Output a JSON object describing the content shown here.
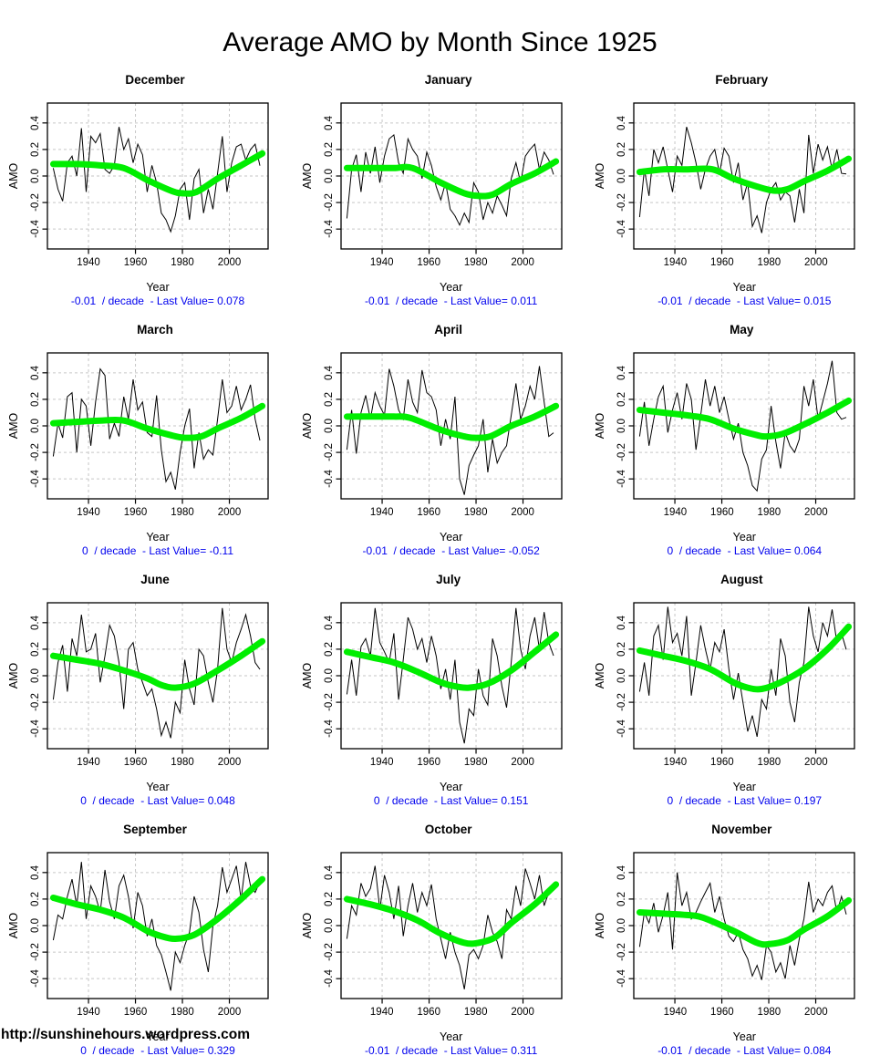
{
  "page": {
    "title": "Average AMO by Month Since 1925",
    "site_url": "http://sunshinehours.wordpress.com"
  },
  "colors": {
    "series_line": "#000000",
    "smooth_line": "#00EE00",
    "caption_text": "#0000EE",
    "grid_line": "#C6C6C6",
    "box_border": "#000000"
  },
  "axes": {
    "x_label": "Year",
    "y_label": "AMO",
    "x_ticks": [
      1940,
      1960,
      1980,
      2000
    ],
    "y_ticks": [
      -0.4,
      -0.2,
      0.0,
      0.2,
      0.4
    ],
    "x_range": [
      1922.5,
      2016.5
    ],
    "y_range": [
      -0.55,
      0.55
    ],
    "grid": "dashed"
  },
  "chart_data": [
    {
      "type": "line",
      "title": "December",
      "xlabel": "Year",
      "ylabel": "AMO",
      "trend_per_decade": "-0.01",
      "last_value": 0.078,
      "caption": "-0.01  / decade  - Last Value= 0.078",
      "x_start": 1925,
      "x_step": 2,
      "values": [
        0.06,
        -0.1,
        -0.19,
        0.1,
        0.15,
        0.0,
        0.36,
        -0.12,
        0.3,
        0.25,
        0.32,
        0.05,
        0.02,
        0.08,
        0.37,
        0.2,
        0.28,
        0.1,
        0.24,
        0.16,
        -0.12,
        0.08,
        -0.05,
        -0.28,
        -0.33,
        -0.42,
        -0.3,
        -0.1,
        -0.05,
        -0.33,
        -0.02,
        0.05,
        -0.28,
        -0.1,
        -0.25,
        0.02,
        0.3,
        -0.12,
        0.1,
        0.22,
        0.24,
        0.12,
        0.2,
        0.24,
        0.078
      ],
      "smooth": {
        "years": [
          1925,
          1935,
          1945,
          1955,
          1965,
          1975,
          1980,
          1986,
          1995,
          2005,
          2014
        ],
        "values": [
          0.09,
          0.09,
          0.08,
          0.06,
          -0.03,
          -0.11,
          -0.13,
          -0.12,
          -0.02,
          0.08,
          0.17
        ]
      }
    },
    {
      "type": "line",
      "title": "January",
      "xlabel": "Year",
      "ylabel": "AMO",
      "trend_per_decade": "-0.01",
      "last_value": 0.011,
      "caption": "-0.01  / decade  - Last Value= 0.011",
      "x_start": 1925,
      "x_step": 2,
      "values": [
        -0.32,
        0.05,
        0.16,
        -0.12,
        0.18,
        0.02,
        0.22,
        -0.05,
        0.15,
        0.28,
        0.31,
        0.1,
        0.02,
        0.28,
        0.2,
        0.15,
        -0.02,
        0.18,
        0.08,
        -0.08,
        -0.18,
        -0.05,
        -0.25,
        -0.3,
        -0.37,
        -0.28,
        -0.35,
        -0.05,
        -0.12,
        -0.33,
        -0.2,
        -0.28,
        -0.15,
        -0.22,
        -0.3,
        -0.02,
        0.1,
        -0.05,
        0.15,
        0.2,
        0.24,
        0.05,
        0.18,
        0.12,
        0.011
      ],
      "smooth": {
        "years": [
          1925,
          1935,
          1945,
          1953,
          1965,
          1975,
          1981,
          1987,
          1995,
          2005,
          2014
        ],
        "values": [
          0.06,
          0.06,
          0.06,
          0.06,
          -0.05,
          -0.13,
          -0.15,
          -0.14,
          -0.06,
          0.02,
          0.11
        ]
      }
    },
    {
      "type": "line",
      "title": "February",
      "xlabel": "Year",
      "ylabel": "AMO",
      "trend_per_decade": "-0.01",
      "last_value": 0.015,
      "caption": "-0.01  / decade  - Last Value= 0.015",
      "x_start": 1925,
      "x_step": 2,
      "values": [
        -0.31,
        0.05,
        -0.15,
        0.2,
        0.1,
        0.22,
        0.05,
        -0.12,
        0.15,
        0.08,
        0.37,
        0.25,
        0.1,
        -0.1,
        0.05,
        0.15,
        0.2,
        0.02,
        0.21,
        0.15,
        -0.05,
        0.1,
        -0.18,
        -0.05,
        -0.38,
        -0.3,
        -0.43,
        -0.2,
        -0.1,
        -0.05,
        -0.18,
        -0.12,
        -0.15,
        -0.35,
        -0.1,
        -0.28,
        0.31,
        0.02,
        0.24,
        0.12,
        0.22,
        0.05,
        0.2,
        0.02,
        0.015
      ],
      "smooth": {
        "years": [
          1925,
          1935,
          1945,
          1956,
          1965,
          1975,
          1982,
          1988,
          1995,
          2005,
          2014
        ],
        "values": [
          0.03,
          0.05,
          0.05,
          0.05,
          -0.02,
          -0.08,
          -0.11,
          -0.1,
          -0.04,
          0.04,
          0.13
        ]
      }
    },
    {
      "type": "line",
      "title": "March",
      "xlabel": "Year",
      "ylabel": "AMO",
      "trend_per_decade": "0",
      "last_value": -0.11,
      "caption": "0  / decade  - Last Value= -0.11",
      "x_start": 1925,
      "x_step": 2,
      "values": [
        -0.23,
        0.02,
        -0.09,
        0.22,
        0.25,
        -0.2,
        0.2,
        0.15,
        -0.15,
        0.18,
        0.43,
        0.38,
        -0.1,
        0.02,
        -0.08,
        0.22,
        0.05,
        0.35,
        0.12,
        0.18,
        -0.05,
        -0.08,
        0.23,
        -0.18,
        -0.42,
        -0.35,
        -0.48,
        -0.2,
        0.0,
        0.13,
        -0.32,
        -0.05,
        -0.25,
        -0.18,
        -0.22,
        0.05,
        0.35,
        0.1,
        0.15,
        0.3,
        0.12,
        0.2,
        0.31,
        0.05,
        -0.11
      ],
      "smooth": {
        "years": [
          1925,
          1935,
          1945,
          1955,
          1965,
          1975,
          1981,
          1988,
          1995,
          2005,
          2014
        ],
        "values": [
          0.02,
          0.03,
          0.04,
          0.04,
          -0.02,
          -0.07,
          -0.09,
          -0.08,
          -0.02,
          0.06,
          0.15
        ]
      }
    },
    {
      "type": "line",
      "title": "April",
      "xlabel": "Year",
      "ylabel": "AMO",
      "trend_per_decade": "-0.01",
      "last_value": -0.052,
      "caption": "-0.01  / decade  - Last Value= -0.052",
      "x_start": 1925,
      "x_step": 2,
      "values": [
        -0.18,
        0.12,
        -0.21,
        0.1,
        0.23,
        0.05,
        0.25,
        0.15,
        0.08,
        0.43,
        0.3,
        0.12,
        0.05,
        0.35,
        0.18,
        0.1,
        0.42,
        0.25,
        0.22,
        0.12,
        -0.15,
        0.05,
        -0.1,
        0.22,
        -0.4,
        -0.52,
        -0.3,
        -0.22,
        -0.15,
        0.05,
        -0.35,
        -0.1,
        -0.28,
        -0.2,
        -0.15,
        0.08,
        0.32,
        0.05,
        0.15,
        0.3,
        0.2,
        0.45,
        0.18,
        -0.08,
        -0.052
      ],
      "smooth": {
        "years": [
          1925,
          1935,
          1945,
          1952,
          1965,
          1975,
          1980,
          1986,
          1995,
          2005,
          2014
        ],
        "values": [
          0.07,
          0.07,
          0.07,
          0.06,
          -0.03,
          -0.08,
          -0.09,
          -0.08,
          0.0,
          0.07,
          0.15
        ]
      }
    },
    {
      "type": "line",
      "title": "May",
      "xlabel": "Year",
      "ylabel": "AMO",
      "trend_per_decade": "0",
      "last_value": 0.064,
      "caption": "0  / decade  - Last Value= 0.064",
      "x_start": 1925,
      "x_step": 2,
      "values": [
        -0.08,
        0.18,
        -0.15,
        0.05,
        0.22,
        0.3,
        -0.05,
        0.12,
        0.25,
        0.05,
        0.32,
        0.2,
        -0.18,
        0.08,
        0.35,
        0.15,
        0.3,
        0.1,
        0.22,
        0.05,
        -0.1,
        0.02,
        -0.2,
        -0.3,
        -0.45,
        -0.49,
        -0.25,
        -0.18,
        0.15,
        -0.12,
        -0.32,
        -0.05,
        -0.15,
        -0.2,
        -0.1,
        0.3,
        0.15,
        0.35,
        0.05,
        0.18,
        0.32,
        0.49,
        0.1,
        0.05,
        0.064
      ],
      "smooth": {
        "years": [
          1925,
          1935,
          1945,
          1955,
          1965,
          1975,
          1979,
          1986,
          1995,
          2005,
          2014
        ],
        "values": [
          0.12,
          0.1,
          0.08,
          0.05,
          -0.02,
          -0.07,
          -0.08,
          -0.06,
          0.01,
          0.1,
          0.19
        ]
      }
    },
    {
      "type": "line",
      "title": "June",
      "xlabel": "Year",
      "ylabel": "AMO",
      "trend_per_decade": "0",
      "last_value": 0.048,
      "caption": "0  / decade  - Last Value= 0.048",
      "x_start": 1925,
      "x_step": 2,
      "values": [
        -0.18,
        0.1,
        0.23,
        -0.12,
        0.28,
        0.15,
        0.46,
        0.18,
        0.2,
        0.32,
        -0.05,
        0.15,
        0.38,
        0.3,
        0.1,
        -0.25,
        0.2,
        0.25,
        0.05,
        -0.05,
        -0.15,
        -0.1,
        -0.25,
        -0.45,
        -0.35,
        -0.47,
        -0.2,
        -0.28,
        0.12,
        -0.1,
        -0.22,
        0.2,
        0.15,
        -0.05,
        -0.2,
        0.05,
        0.51,
        0.2,
        0.1,
        0.25,
        0.35,
        0.46,
        0.3,
        0.1,
        0.048
      ],
      "smooth": {
        "years": [
          1925,
          1935,
          1945,
          1955,
          1965,
          1971,
          1977,
          1985,
          1995,
          2005,
          2014
        ],
        "values": [
          0.15,
          0.12,
          0.09,
          0.04,
          -0.02,
          -0.07,
          -0.09,
          -0.06,
          0.04,
          0.15,
          0.26
        ]
      }
    },
    {
      "type": "line",
      "title": "July",
      "xlabel": "Year",
      "ylabel": "AMO",
      "trend_per_decade": "0",
      "last_value": 0.151,
      "caption": "0  / decade  - Last Value= 0.151",
      "x_start": 1925,
      "x_step": 2,
      "values": [
        -0.14,
        0.12,
        -0.15,
        0.22,
        0.28,
        0.15,
        0.51,
        0.25,
        0.18,
        0.1,
        0.32,
        -0.18,
        0.12,
        0.44,
        0.35,
        0.2,
        0.28,
        0.1,
        0.3,
        0.15,
        -0.1,
        0.05,
        -0.18,
        0.12,
        -0.35,
        -0.51,
        -0.25,
        -0.3,
        0.05,
        -0.15,
        -0.22,
        0.28,
        0.15,
        -0.08,
        -0.24,
        0.1,
        0.51,
        0.2,
        0.05,
        0.3,
        0.44,
        0.2,
        0.48,
        0.25,
        0.151
      ],
      "smooth": {
        "years": [
          1925,
          1935,
          1945,
          1955,
          1965,
          1971,
          1977,
          1985,
          1995,
          2005,
          2014
        ],
        "values": [
          0.18,
          0.14,
          0.1,
          0.03,
          -0.05,
          -0.08,
          -0.09,
          -0.06,
          0.04,
          0.18,
          0.31
        ]
      }
    },
    {
      "type": "line",
      "title": "August",
      "xlabel": "Year",
      "ylabel": "AMO",
      "trend_per_decade": "0",
      "last_value": 0.197,
      "caption": "0  / decade  - Last Value= 0.197",
      "x_start": 1925,
      "x_step": 2,
      "values": [
        -0.12,
        0.1,
        -0.15,
        0.3,
        0.38,
        0.12,
        0.52,
        0.25,
        0.32,
        0.15,
        0.45,
        -0.15,
        0.1,
        0.38,
        0.2,
        0.05,
        0.25,
        0.18,
        0.35,
        0.05,
        -0.18,
        0.02,
        -0.2,
        -0.42,
        -0.3,
        -0.46,
        -0.18,
        -0.25,
        0.05,
        -0.15,
        0.28,
        0.15,
        -0.2,
        -0.35,
        -0.05,
        0.1,
        0.52,
        0.3,
        0.18,
        0.4,
        0.3,
        0.5,
        0.25,
        0.32,
        0.197
      ],
      "smooth": {
        "years": [
          1925,
          1935,
          1945,
          1955,
          1965,
          1971,
          1977,
          1985,
          1995,
          2005,
          2014
        ],
        "values": [
          0.19,
          0.15,
          0.11,
          0.05,
          -0.05,
          -0.09,
          -0.1,
          -0.05,
          0.05,
          0.2,
          0.37
        ]
      }
    },
    {
      "type": "line",
      "title": "September",
      "xlabel": "Year",
      "ylabel": "AMO",
      "trend_per_decade": "0",
      "last_value": 0.329,
      "caption": "0  / decade  - Last Value= 0.329",
      "x_start": 1925,
      "x_step": 2,
      "values": [
        -0.11,
        0.08,
        0.05,
        0.22,
        0.35,
        0.15,
        0.48,
        0.05,
        0.3,
        0.22,
        0.1,
        0.42,
        0.18,
        0.05,
        0.3,
        0.38,
        0.22,
        -0.02,
        0.25,
        0.15,
        -0.08,
        0.05,
        -0.15,
        -0.22,
        -0.35,
        -0.49,
        -0.2,
        -0.28,
        -0.15,
        -0.05,
        0.22,
        0.1,
        -0.18,
        -0.35,
        0.0,
        0.15,
        0.44,
        0.25,
        0.35,
        0.45,
        0.2,
        0.48,
        0.3,
        0.25,
        0.329
      ],
      "smooth": {
        "years": [
          1925,
          1935,
          1945,
          1955,
          1965,
          1971,
          1977,
          1985,
          1995,
          2005,
          2014
        ],
        "values": [
          0.21,
          0.16,
          0.12,
          0.06,
          -0.04,
          -0.08,
          -0.1,
          -0.07,
          0.05,
          0.2,
          0.35
        ]
      }
    },
    {
      "type": "line",
      "title": "October",
      "xlabel": "Year",
      "ylabel": "AMO",
      "trend_per_decade": "-0.01",
      "last_value": 0.311,
      "caption": "-0.01  / decade  - Last Value= 0.311",
      "x_start": 1925,
      "x_step": 2,
      "values": [
        -0.1,
        0.15,
        0.08,
        0.32,
        0.22,
        0.28,
        0.45,
        0.12,
        0.38,
        0.25,
        0.05,
        0.3,
        -0.08,
        0.15,
        0.32,
        0.1,
        0.25,
        0.15,
        0.31,
        0.05,
        -0.1,
        -0.25,
        -0.05,
        -0.2,
        -0.3,
        -0.48,
        -0.22,
        -0.18,
        -0.25,
        -0.15,
        0.08,
        -0.05,
        -0.12,
        -0.25,
        0.12,
        0.05,
        0.3,
        0.15,
        0.43,
        0.32,
        0.2,
        0.38,
        0.15,
        0.25,
        0.311
      ],
      "smooth": {
        "years": [
          1925,
          1935,
          1945,
          1955,
          1965,
          1975,
          1981,
          1988,
          1995,
          2005,
          2014
        ],
        "values": [
          0.2,
          0.16,
          0.11,
          0.04,
          -0.06,
          -0.13,
          -0.13,
          -0.09,
          0.02,
          0.16,
          0.31
        ]
      }
    },
    {
      "type": "line",
      "title": "November",
      "xlabel": "Year",
      "ylabel": "AMO",
      "trend_per_decade": "-0.01",
      "last_value": 0.084,
      "caption": "-0.01  / decade  - Last Value= 0.084",
      "x_start": 1925,
      "x_step": 2,
      "values": [
        -0.16,
        0.1,
        0.02,
        0.17,
        -0.05,
        0.08,
        0.25,
        -0.18,
        0.4,
        0.15,
        0.25,
        0.05,
        0.1,
        0.18,
        0.25,
        0.32,
        0.1,
        0.22,
        0.05,
        -0.08,
        -0.12,
        -0.05,
        -0.18,
        -0.25,
        -0.38,
        -0.3,
        -0.41,
        -0.15,
        -0.2,
        -0.35,
        -0.28,
        -0.4,
        -0.15,
        -0.3,
        -0.1,
        0.05,
        0.33,
        0.1,
        0.2,
        0.15,
        0.25,
        0.3,
        0.1,
        0.22,
        0.084
      ],
      "smooth": {
        "years": [
          1925,
          1935,
          1945,
          1952,
          1965,
          1975,
          1980,
          1988,
          1995,
          2005,
          2014
        ],
        "values": [
          0.1,
          0.09,
          0.08,
          0.06,
          -0.04,
          -0.13,
          -0.14,
          -0.11,
          -0.03,
          0.07,
          0.19
        ]
      }
    }
  ]
}
